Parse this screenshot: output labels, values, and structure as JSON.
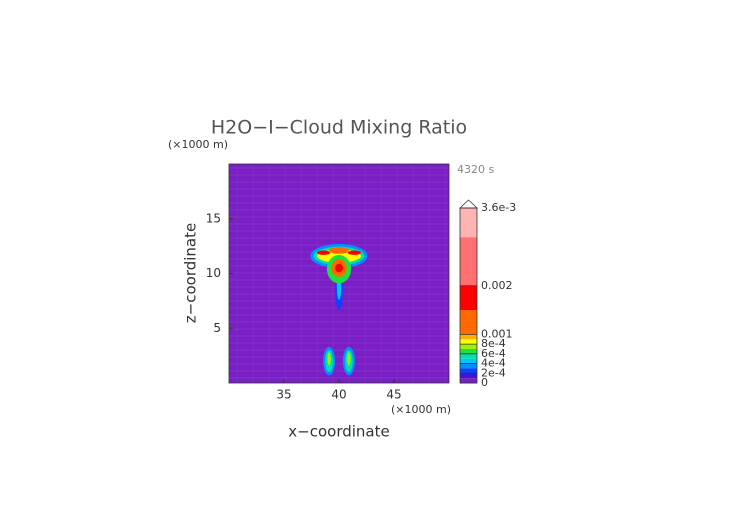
{
  "chart_data": {
    "type": "contour",
    "title": "H2O−I−Cloud Mixing Ratio",
    "y_unit": "(×1000 m)",
    "x_unit": "(×1000 m)",
    "time": "4320 s",
    "x_label": "x−coordinate",
    "y_label": "z−coordinate",
    "xlim": [
      30,
      50
    ],
    "ylim": [
      0,
      20
    ],
    "xticks": [
      35,
      40,
      45
    ],
    "yticks": [
      5,
      10,
      15
    ],
    "background_value": 0,
    "levels": [
      0,
      0.0001,
      0.0002,
      0.0003,
      0.0004,
      0.0005,
      0.0006,
      0.0007,
      0.0008,
      0.0009,
      0.001,
      0.0015,
      0.002,
      0.003,
      0.0036
    ],
    "colors": [
      "#7a1ec6",
      "#3a1ad0",
      "#1040ff",
      "#0090ff",
      "#00c8f0",
      "#00e0b0",
      "#20e040",
      "#a0f000",
      "#ffff00",
      "#ffb000",
      "#ff6a00",
      "#ff0000",
      "#ff7070",
      "#ffb4b4"
    ],
    "colorbar_ticks": [
      0,
      {
        "value": 0.0002,
        "label": "2e-4"
      },
      {
        "value": 0.0004,
        "label": "4e-4"
      },
      {
        "value": 0.0006,
        "label": "6e-4"
      },
      {
        "value": 0.0008,
        "label": "8e-4"
      },
      0.001,
      0.002,
      {
        "value": 0.0036,
        "label": "3.6e-3"
      }
    ],
    "features": [
      {
        "x": 40,
        "y": 11.6,
        "rx": 2.6,
        "ry": 1.1,
        "value": 0.0003
      },
      {
        "x": 40,
        "y": 11.6,
        "rx": 2.3,
        "ry": 0.85,
        "value": 0.0005
      },
      {
        "x": 40,
        "y": 11.6,
        "rx": 2.0,
        "ry": 0.6,
        "value": 0.0008
      },
      {
        "x": 40,
        "y": 12.1,
        "rx": 0.9,
        "ry": 0.3,
        "value": 0.001
      },
      {
        "x": 38.6,
        "y": 11.9,
        "rx": 0.6,
        "ry": 0.2,
        "value": 0.0015
      },
      {
        "x": 41.4,
        "y": 11.9,
        "rx": 0.6,
        "ry": 0.2,
        "value": 0.0015
      },
      {
        "x": 40,
        "y": 8.5,
        "rx": 0.35,
        "ry": 1.8,
        "value": 0.0002
      },
      {
        "x": 40,
        "y": 8.8,
        "rx": 0.2,
        "ry": 1.2,
        "value": 0.0004
      },
      {
        "x": 40,
        "y": 10.4,
        "rx": 1.1,
        "ry": 1.3,
        "value": 0.0006
      },
      {
        "x": 40,
        "y": 10.5,
        "rx": 0.7,
        "ry": 0.8,
        "value": 0.001
      },
      {
        "x": 40,
        "y": 10.5,
        "rx": 0.35,
        "ry": 0.4,
        "value": 0.0016
      },
      {
        "x": 39.1,
        "y": 2,
        "rx": 0.55,
        "ry": 1.3,
        "value": 0.0003
      },
      {
        "x": 39.1,
        "y": 2,
        "rx": 0.35,
        "ry": 1.0,
        "value": 0.0005
      },
      {
        "x": 39.1,
        "y": 2.2,
        "rx": 0.15,
        "ry": 0.6,
        "value": 0.0007
      },
      {
        "x": 40.9,
        "y": 2,
        "rx": 0.55,
        "ry": 1.3,
        "value": 0.0003
      },
      {
        "x": 40.9,
        "y": 2,
        "rx": 0.35,
        "ry": 1.0,
        "value": 0.0005
      },
      {
        "x": 40.9,
        "y": 2.2,
        "rx": 0.15,
        "ry": 0.6,
        "value": 0.0007
      }
    ]
  }
}
